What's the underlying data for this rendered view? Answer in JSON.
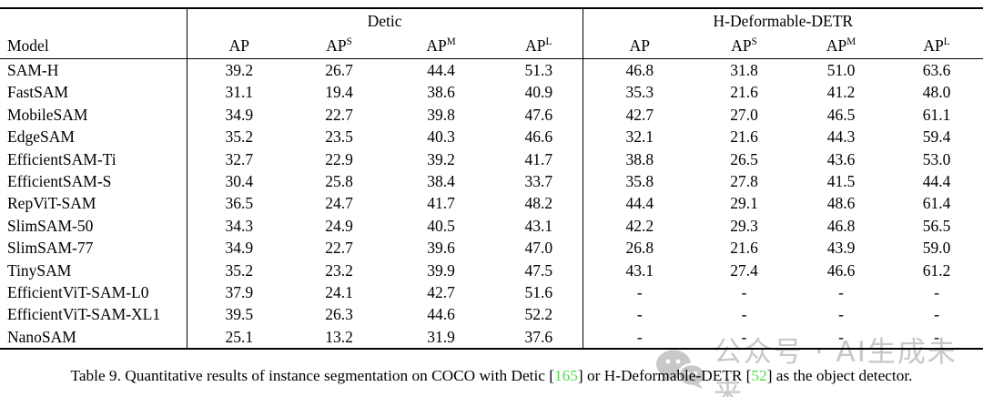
{
  "table": {
    "model_header": "Model",
    "groups": [
      {
        "label": "Detic"
      },
      {
        "label": "H-Deformable-DETR"
      }
    ],
    "sub_headers": [
      {
        "base": "AP",
        "sup": ""
      },
      {
        "base": "AP",
        "sup": "S"
      },
      {
        "base": "AP",
        "sup": "M"
      },
      {
        "base": "AP",
        "sup": "L"
      }
    ],
    "rows": [
      {
        "model": "SAM-H",
        "detic": [
          "39.2",
          "26.7",
          "44.4",
          "51.3"
        ],
        "hdetr": [
          "46.8",
          "31.8",
          "51.0",
          "63.6"
        ],
        "bold_detic": false,
        "bold_hdetr": false
      },
      {
        "model": "FastSAM",
        "detic": [
          "31.1",
          "19.4",
          "38.6",
          "40.9"
        ],
        "hdetr": [
          "35.3",
          "21.6",
          "41.2",
          "48.0"
        ],
        "bold_detic": false,
        "bold_hdetr": false
      },
      {
        "model": "MobileSAM",
        "detic": [
          "34.9",
          "22.7",
          "39.8",
          "47.6"
        ],
        "hdetr": [
          "42.7",
          "27.0",
          "46.5",
          "61.1"
        ],
        "bold_detic": false,
        "bold_hdetr": false
      },
      {
        "model": "EdgeSAM",
        "detic": [
          "35.2",
          "23.5",
          "40.3",
          "46.6"
        ],
        "hdetr": [
          "32.1",
          "21.6",
          "44.3",
          "59.4"
        ],
        "bold_detic": false,
        "bold_hdetr": false
      },
      {
        "model": "EfficientSAM-Ti",
        "detic": [
          "32.7",
          "22.9",
          "39.2",
          "41.7"
        ],
        "hdetr": [
          "38.8",
          "26.5",
          "43.6",
          "53.0"
        ],
        "bold_detic": false,
        "bold_hdetr": false
      },
      {
        "model": "EfficientSAM-S",
        "detic": [
          "30.4",
          "25.8",
          "38.4",
          "33.7"
        ],
        "hdetr": [
          "35.8",
          "27.8",
          "41.5",
          "44.4"
        ],
        "bold_detic": false,
        "bold_hdetr": false
      },
      {
        "model": "RepViT-SAM",
        "detic": [
          "36.5",
          "24.7",
          "41.7",
          "48.2"
        ],
        "hdetr": [
          "44.4",
          "29.1",
          "48.6",
          "61.4"
        ],
        "bold_detic": false,
        "bold_hdetr": true
      },
      {
        "model": "SlimSAM-50",
        "detic": [
          "34.3",
          "24.9",
          "40.5",
          "43.1"
        ],
        "hdetr": [
          "42.2",
          "29.3",
          "46.8",
          "56.5"
        ],
        "bold_detic": false,
        "bold_hdetr": false
      },
      {
        "model": "SlimSAM-77",
        "detic": [
          "34.9",
          "22.7",
          "39.6",
          "47.0"
        ],
        "hdetr": [
          "26.8",
          "21.6",
          "43.9",
          "59.0"
        ],
        "bold_detic": false,
        "bold_hdetr": false
      },
      {
        "model": "TinySAM",
        "detic": [
          "35.2",
          "23.2",
          "39.9",
          "47.5"
        ],
        "hdetr": [
          "43.1",
          "27.4",
          "46.6",
          "61.2"
        ],
        "bold_detic": false,
        "bold_hdetr": false
      },
      {
        "model": "EfficientViT-SAM-L0",
        "detic": [
          "37.9",
          "24.1",
          "42.7",
          "51.6"
        ],
        "hdetr": [
          "-",
          "-",
          "-",
          "-"
        ],
        "bold_detic": false,
        "bold_hdetr": false
      },
      {
        "model": "EfficientViT-SAM-XL1",
        "detic": [
          "39.5",
          "26.3",
          "44.6",
          "52.2"
        ],
        "hdetr": [
          "-",
          "-",
          "-",
          "-"
        ],
        "bold_detic": true,
        "bold_hdetr": false
      },
      {
        "model": "NanoSAM",
        "detic": [
          "25.1",
          "13.2",
          "31.9",
          "37.6"
        ],
        "hdetr": [
          "-",
          "-",
          "-",
          "-"
        ],
        "bold_detic": false,
        "bold_hdetr": false
      }
    ]
  },
  "caption": {
    "segments": [
      {
        "text": "Table 9. Quantitative results of instance segmentation on COCO with Detic [",
        "style": "normal"
      },
      {
        "text": "165",
        "style": "cite"
      },
      {
        "text": "] or H-Deformable-DETR [",
        "style": "normal"
      },
      {
        "text": "52",
        "style": "cite"
      },
      {
        "text": "] as the object detector.",
        "style": "normal"
      }
    ]
  },
  "watermark": {
    "text": "公众号 · AI生成未来",
    "icon": "wechat-icon"
  },
  "colors": {
    "text": "#000000",
    "background": "#ffffff",
    "citation_green": "#4ce24c",
    "watermark_gray": "#c8c8c8",
    "rule_black": "#000000"
  }
}
